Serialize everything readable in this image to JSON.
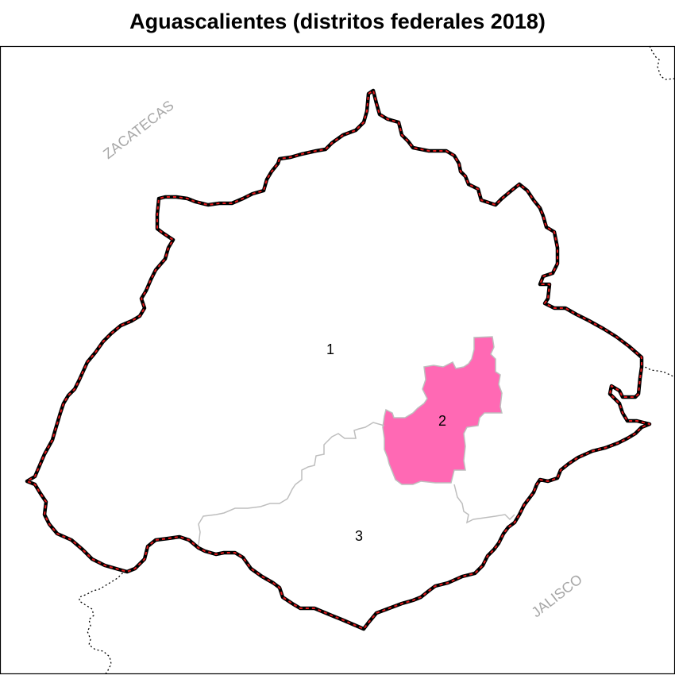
{
  "title": "Aguascalientes (distritos federales 2018)",
  "neighbors": {
    "north": "ZACATECAS",
    "south": "JALISCO"
  },
  "districts": [
    {
      "label": "1",
      "highlighted": false
    },
    {
      "label": "2",
      "highlighted": true
    },
    {
      "label": "3",
      "highlighted": false
    }
  ],
  "colors": {
    "highlight_fill": "#ff69b4",
    "state_border_outer": "#000000",
    "state_border_inner": "#e41a1c",
    "district_border": "#bebebe",
    "neighbor_label": "#a6a6a6"
  }
}
